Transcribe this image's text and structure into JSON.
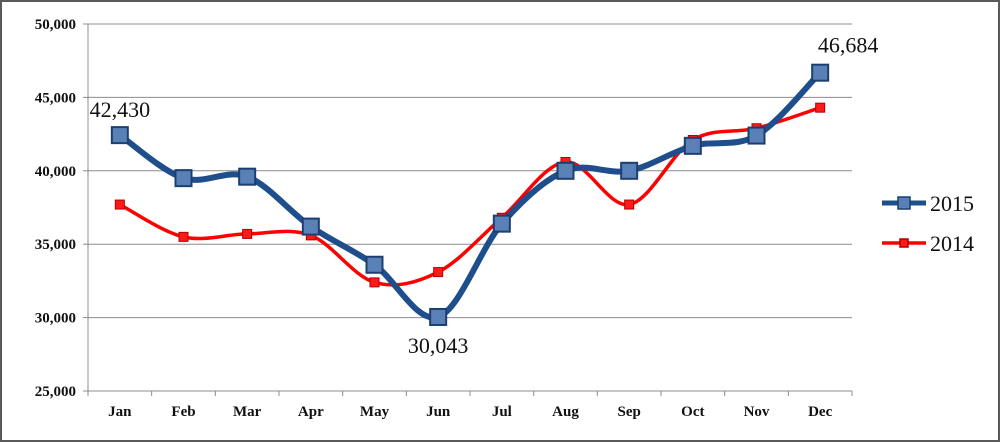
{
  "chart_data": {
    "type": "line",
    "categories": [
      "Jan",
      "Feb",
      "Mar",
      "Apr",
      "May",
      "Jun",
      "Jul",
      "Aug",
      "Sep",
      "Oct",
      "Nov",
      "Dec"
    ],
    "series": [
      {
        "name": "2015",
        "color": "#1f4e8c",
        "marker": "square",
        "values": [
          42430,
          39500,
          39600,
          36200,
          33600,
          30043,
          36400,
          40000,
          40000,
          41700,
          42400,
          46684
        ]
      },
      {
        "name": "2014",
        "color": "#ff0000",
        "marker": "square",
        "values": [
          37700,
          35500,
          35700,
          35600,
          32400,
          33100,
          36800,
          40600,
          37700,
          42100,
          42900,
          44300
        ]
      }
    ],
    "ylim": [
      25000,
      50000
    ],
    "yticks": [
      25000,
      30000,
      35000,
      40000,
      45000,
      50000
    ],
    "ytick_labels": [
      "25,000",
      "30,000",
      "35,000",
      "40,000",
      "45,000",
      "50,000"
    ],
    "annotations": [
      {
        "series": 0,
        "index": 0,
        "text": "42,430"
      },
      {
        "series": 0,
        "index": 5,
        "text": "30,043"
      },
      {
        "series": 0,
        "index": 11,
        "text": "46,684"
      }
    ],
    "grid": "horizontal",
    "legend_position": "right"
  }
}
